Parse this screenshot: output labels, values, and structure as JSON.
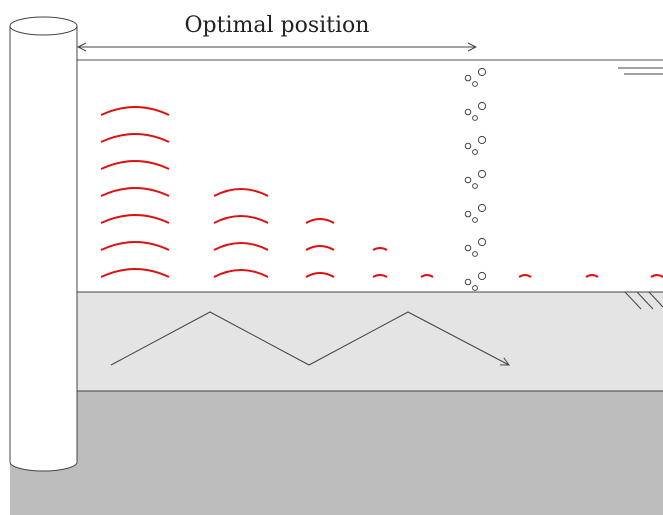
{
  "diagram": {
    "title": "Optimal position",
    "colors": {
      "background": "#ffffff",
      "water_line": "#555555",
      "sediment_layer": "#e4e4e4",
      "bedrock_layer": "#bdbdbd",
      "pile_fill": "#ffffff",
      "pile_stroke": "#444444",
      "wave_arcs": "#e01010",
      "bubbles": "#444444",
      "zigzag_path": "#444444"
    },
    "icons": {
      "water_surface": "water-surface-icon",
      "seabed_hatch": "seabed-hatch-icon",
      "dimension_arrow": "double-arrow-icon",
      "ray_path": "zigzag-arrow-icon",
      "bubble_column": "bubble-column-icon"
    },
    "wave_front_counts": [
      7,
      4,
      3,
      2,
      1,
      1,
      1,
      1
    ]
  }
}
